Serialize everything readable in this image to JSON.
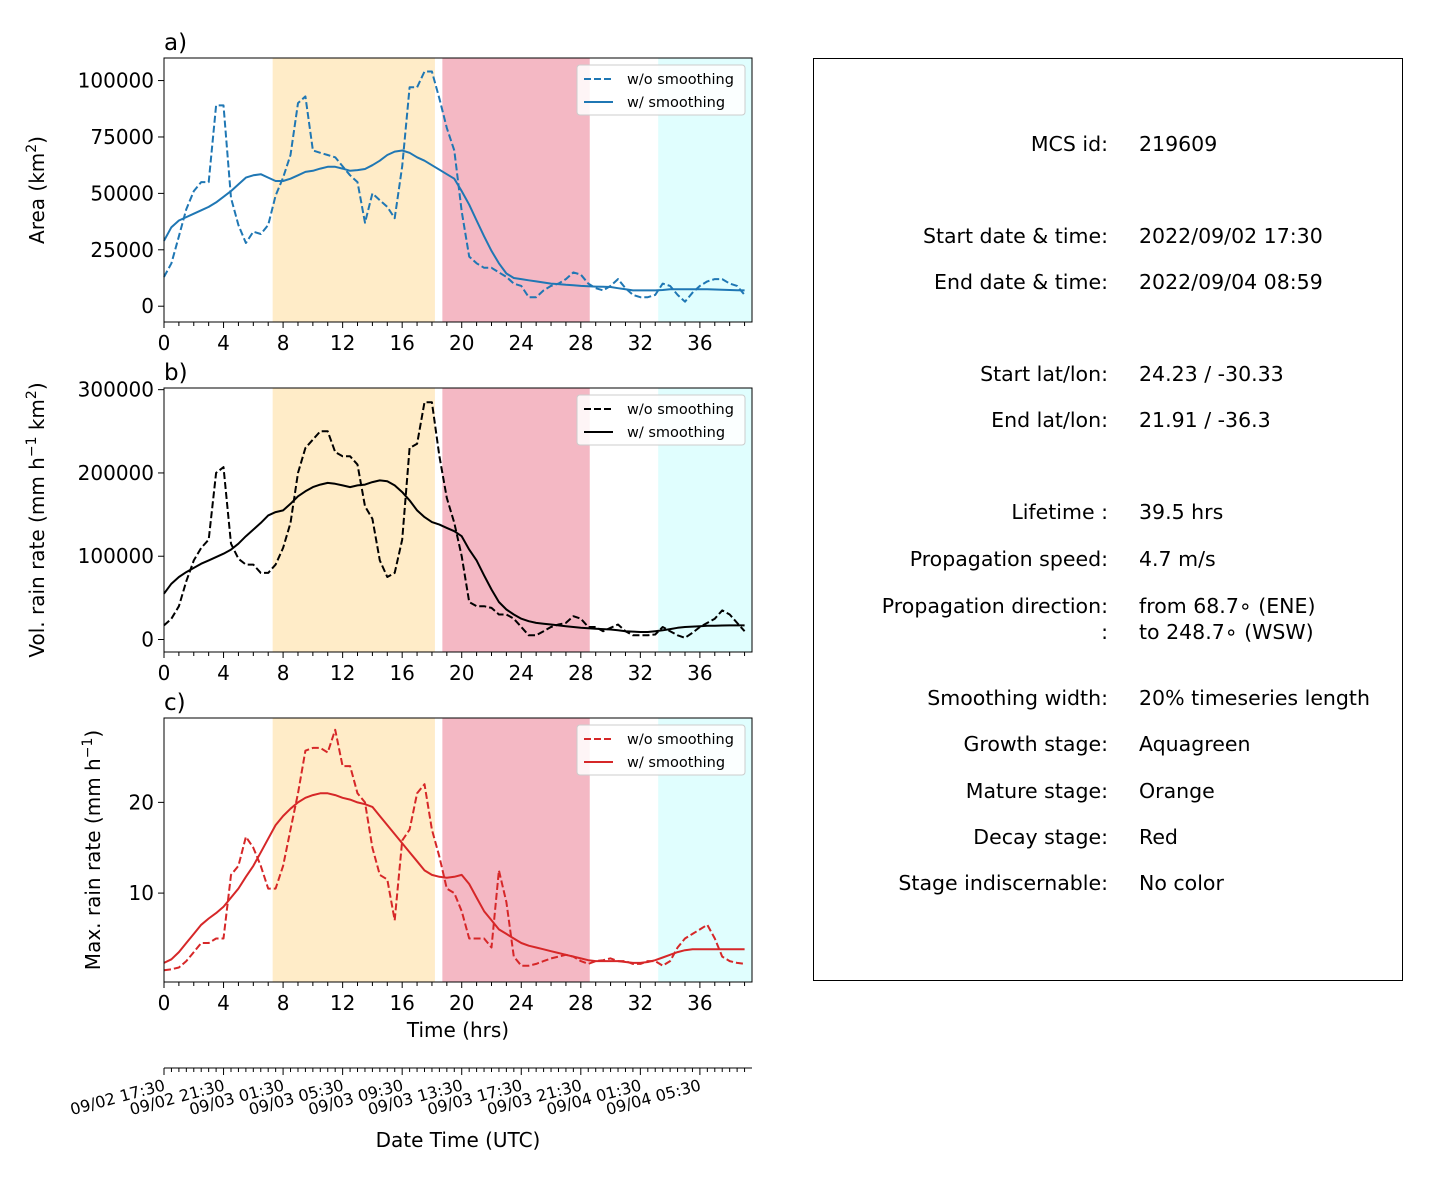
{
  "chart_data": [
    {
      "type": "line",
      "panel_label": "a)",
      "ylabel": "Area  (km²)",
      "ylabel_base": "Area  (km",
      "ylabel_sup": "2",
      "ylabel_end": ")",
      "xlim": [
        0,
        39.5
      ],
      "ylim": [
        -7000,
        110000
      ],
      "yticks": [
        0,
        25000,
        50000,
        75000,
        100000
      ],
      "xticks": [
        0,
        4,
        8,
        12,
        16,
        20,
        24,
        28,
        32,
        36
      ],
      "color": "#1f77b4",
      "legend": [
        "w/o smoothing",
        "w/ smoothing"
      ],
      "legend_position": "upper right",
      "x": [
        0,
        0.5,
        1,
        1.5,
        2,
        2.5,
        3,
        3.5,
        4,
        4.5,
        5,
        5.5,
        6,
        6.5,
        7,
        7.5,
        8,
        8.5,
        9,
        9.5,
        10,
        10.5,
        11,
        11.5,
        12,
        12.5,
        13,
        13.5,
        14,
        14.5,
        15,
        15.5,
        16,
        16.5,
        17,
        17.5,
        18,
        18.5,
        19,
        19.5,
        20,
        20.5,
        21,
        21.5,
        22,
        22.5,
        23,
        23.5,
        24,
        24.5,
        25,
        25.5,
        26,
        26.5,
        27,
        27.5,
        28,
        28.5,
        29,
        29.5,
        30,
        30.5,
        31,
        31.5,
        32,
        32.5,
        33,
        33.5,
        34,
        34.5,
        35,
        35.5,
        36,
        36.5,
        37,
        37.5,
        38,
        38.5,
        39
      ],
      "series": [
        {
          "name": "w/o smoothing",
          "style": "dashed",
          "values": [
            13000,
            19000,
            31000,
            43000,
            51000,
            55000,
            55000,
            89000,
            89000,
            48000,
            36000,
            28000,
            33000,
            32000,
            36000,
            49000,
            57000,
            67000,
            90000,
            93000,
            69000,
            68000,
            67000,
            66000,
            62000,
            58000,
            55000,
            37000,
            50000,
            47000,
            44000,
            39000,
            62000,
            97000,
            97000,
            104000,
            104000,
            92000,
            79000,
            69000,
            42000,
            22000,
            19000,
            17000,
            17000,
            15000,
            13000,
            10000,
            9000,
            4000,
            4000,
            7000,
            9000,
            10000,
            12000,
            15000,
            14000,
            10000,
            8000,
            7000,
            9000,
            12000,
            8000,
            5000,
            4000,
            4000,
            5000,
            10000,
            9000,
            5000,
            2000,
            6000,
            9000,
            11000,
            12000,
            12000,
            10000,
            9000,
            5000
          ]
        },
        {
          "name": "w/ smoothing",
          "style": "solid",
          "values": [
            29000,
            35000,
            38000,
            39500,
            41000,
            42500,
            44000,
            46000,
            48500,
            51000,
            54000,
            57000,
            58000,
            58500,
            57000,
            55500,
            55500,
            56500,
            58000,
            59500,
            60000,
            61000,
            61800,
            61800,
            61000,
            60000,
            60300,
            60800,
            62500,
            64500,
            67000,
            68500,
            69000,
            68000,
            66000,
            64500,
            62500,
            60500,
            58500,
            56500,
            51000,
            45000,
            38000,
            31000,
            24500,
            19000,
            14500,
            12500,
            12000,
            11500,
            11000,
            10500,
            10000,
            9800,
            9500,
            9300,
            9000,
            8800,
            8700,
            8600,
            8500,
            8000,
            7500,
            7000,
            7000,
            7000,
            7000,
            7200,
            7500,
            7500,
            7500,
            7500,
            7500,
            7500,
            7400,
            7300,
            7200,
            7100,
            7000
          ]
        }
      ]
    },
    {
      "type": "line",
      "panel_label": "b)",
      "ylabel": "Vol. rain rate (mm h⁻¹ km²)",
      "ylabel_base": "Vol. rain rate (mm h",
      "ylabel_sup": "−1",
      "ylabel_mid": " km",
      "ylabel_sup2": "2",
      "ylabel_end": ")",
      "xlim": [
        0,
        39.5
      ],
      "ylim": [
        -15000,
        302000
      ],
      "yticks": [
        0,
        100000,
        200000,
        300000
      ],
      "xticks": [
        0,
        4,
        8,
        12,
        16,
        20,
        24,
        28,
        32,
        36
      ],
      "color": "#000000",
      "legend": [
        "w/o smoothing",
        "w/ smoothing"
      ],
      "legend_position": "upper right",
      "x": [
        0,
        0.5,
        1,
        1.5,
        2,
        2.5,
        3,
        3.5,
        4,
        4.5,
        5,
        5.5,
        6,
        6.5,
        7,
        7.5,
        8,
        8.5,
        9,
        9.5,
        10,
        10.5,
        11,
        11.5,
        12,
        12.5,
        13,
        13.5,
        14,
        14.5,
        15,
        15.5,
        16,
        16.5,
        17,
        17.5,
        18,
        18.5,
        19,
        19.5,
        20,
        20.5,
        21,
        21.5,
        22,
        22.5,
        23,
        23.5,
        24,
        24.5,
        25,
        25.5,
        26,
        26.5,
        27,
        27.5,
        28,
        28.5,
        29,
        29.5,
        30,
        30.5,
        31,
        31.5,
        32,
        32.5,
        33,
        33.5,
        34,
        34.5,
        35,
        35.5,
        36,
        36.5,
        37,
        37.5,
        38,
        38.5,
        39
      ],
      "series": [
        {
          "name": "w/o smoothing",
          "style": "dashed",
          "values": [
            17000,
            25000,
            40000,
            70000,
            95000,
            110000,
            120000,
            200000,
            207000,
            115000,
            97000,
            90000,
            90000,
            80000,
            80000,
            90000,
            110000,
            140000,
            200000,
            230000,
            240000,
            250000,
            250000,
            225000,
            220000,
            220000,
            210000,
            160000,
            145000,
            95000,
            75000,
            80000,
            120000,
            230000,
            235000,
            285000,
            285000,
            220000,
            170000,
            140000,
            100000,
            45000,
            40000,
            40000,
            38000,
            30000,
            30000,
            25000,
            15000,
            5000,
            5000,
            10000,
            15000,
            18000,
            20000,
            28000,
            25000,
            15000,
            15000,
            10000,
            14000,
            18000,
            10000,
            5000,
            5000,
            5000,
            6000,
            15000,
            10000,
            5000,
            2000,
            8000,
            15000,
            20000,
            25000,
            35000,
            30000,
            20000,
            10000
          ]
        },
        {
          "name": "w/ smoothing",
          "style": "solid",
          "values": [
            55000,
            67000,
            75000,
            81000,
            86000,
            91000,
            95000,
            99000,
            103000,
            108000,
            115000,
            124000,
            132000,
            140000,
            149000,
            153000,
            155000,
            163000,
            172000,
            178000,
            183000,
            186000,
            188000,
            187000,
            185000,
            183000,
            185000,
            186000,
            189000,
            191000,
            190000,
            185000,
            177000,
            167000,
            155000,
            147000,
            141000,
            138000,
            134000,
            130000,
            124000,
            108000,
            95000,
            77000,
            60000,
            45000,
            36000,
            30000,
            25000,
            22000,
            20000,
            19000,
            18000,
            17000,
            16000,
            15000,
            14000,
            13500,
            13000,
            12500,
            12000,
            11000,
            10000,
            9500,
            9000,
            9000,
            10000,
            11000,
            12500,
            14000,
            15000,
            15500,
            16000,
            16500,
            16500,
            16800,
            17000,
            17000,
            17000
          ]
        }
      ]
    },
    {
      "type": "line",
      "panel_label": "c)",
      "ylabel": "Max. rain rate  (mm h⁻¹)",
      "ylabel_base": "Max. rain rate  (mm h",
      "ylabel_sup": "−1",
      "ylabel_end": ")",
      "xlim": [
        0,
        39.5
      ],
      "ylim": [
        0.2,
        29.3
      ],
      "yticks": [
        10,
        20
      ],
      "xticks": [
        0,
        4,
        8,
        12,
        16,
        20,
        24,
        28,
        32,
        36
      ],
      "color": "#d62728",
      "legend": [
        "w/o smoothing",
        "w/ smoothing"
      ],
      "legend_position": "upper right",
      "xlabel": "Time (hrs)",
      "x": [
        0,
        0.5,
        1,
        1.5,
        2,
        2.5,
        3,
        3.5,
        4,
        4.5,
        5,
        5.5,
        6,
        6.5,
        7,
        7.5,
        8,
        8.5,
        9,
        9.5,
        10,
        10.5,
        11,
        11.5,
        12,
        12.5,
        13,
        13.5,
        14,
        14.5,
        15,
        15.5,
        16,
        16.5,
        17,
        17.5,
        18,
        18.5,
        19,
        19.5,
        20,
        20.5,
        21,
        21.5,
        22,
        22.5,
        23,
        23.5,
        24,
        24.5,
        25,
        25.5,
        26,
        26.5,
        27,
        27.5,
        28,
        28.5,
        29,
        29.5,
        30,
        30.5,
        31,
        31.5,
        32,
        32.5,
        33,
        33.5,
        34,
        34.5,
        35,
        35.5,
        36,
        36.5,
        37,
        37.5,
        38,
        38.5,
        39
      ],
      "series": [
        {
          "name": "w/o smoothing",
          "style": "dashed",
          "values": [
            1.5,
            1.6,
            1.8,
            2.5,
            3.5,
            4.5,
            4.5,
            5.0,
            5.0,
            12.0,
            13.0,
            16.2,
            15.0,
            13.0,
            10.5,
            10.5,
            13.0,
            17.0,
            21.0,
            25.7,
            26.0,
            26.0,
            25.5,
            28.0,
            24.0,
            24.0,
            21.0,
            20.0,
            15.0,
            12.0,
            11.5,
            7.0,
            15.8,
            17.0,
            21.0,
            22.0,
            17.0,
            14.0,
            10.5,
            10.0,
            8.0,
            5.0,
            5.0,
            5.0,
            4.0,
            12.5,
            9.0,
            3.0,
            2.0,
            2.0,
            2.2,
            2.5,
            2.8,
            3.0,
            3.2,
            3.0,
            2.5,
            2.2,
            2.5,
            2.6,
            2.8,
            2.5,
            2.5,
            2.2,
            2.2,
            2.5,
            2.5,
            2.0,
            2.5,
            4.0,
            5.0,
            5.5,
            6.0,
            6.5,
            5.0,
            3.0,
            2.5,
            2.3,
            2.2
          ]
        },
        {
          "name": "w/ smoothing",
          "style": "solid",
          "values": [
            2.3,
            2.7,
            3.5,
            4.5,
            5.5,
            6.5,
            7.2,
            7.8,
            8.5,
            9.5,
            10.5,
            11.8,
            13.0,
            14.5,
            16.0,
            17.5,
            18.5,
            19.3,
            20.0,
            20.5,
            20.8,
            21.0,
            21.0,
            20.8,
            20.5,
            20.3,
            20.0,
            19.8,
            19.5,
            18.5,
            17.5,
            16.5,
            15.5,
            14.5,
            13.5,
            12.5,
            12.0,
            11.8,
            11.7,
            11.8,
            12.0,
            11.0,
            9.5,
            8.0,
            7.0,
            6.0,
            5.5,
            5.0,
            4.5,
            4.2,
            4.0,
            3.8,
            3.6,
            3.4,
            3.2,
            3.0,
            2.8,
            2.6,
            2.5,
            2.5,
            2.5,
            2.5,
            2.4,
            2.3,
            2.3,
            2.4,
            2.6,
            2.9,
            3.2,
            3.5,
            3.7,
            3.8,
            3.8,
            3.8,
            3.8,
            3.8,
            3.8,
            3.8,
            3.8
          ]
        }
      ]
    }
  ],
  "stages": [
    {
      "name": "Mature",
      "color": "#ffecc8",
      "start": 7.3,
      "end": 18.2
    },
    {
      "name": "Decay",
      "color": "#f4b8c4",
      "start": 18.7,
      "end": 28.6
    },
    {
      "name": "Growth",
      "color": "#e0fefe",
      "start": 33.2,
      "end": 39.5
    }
  ],
  "date_axis": {
    "xlabel": "Date Time (UTC)",
    "tick_labels": [
      "09/02 17:30",
      "09/02 21:30",
      "09/03 01:30",
      "09/03 05:30",
      "09/03 09:30",
      "09/03 13:30",
      "09/03 17:30",
      "09/03 21:30",
      "09/04 01:30",
      "09/04 05:30"
    ]
  },
  "info": {
    "rows": [
      {
        "label": "MCS id:",
        "value": "219609"
      },
      {
        "label": "Start date & time:",
        "value": "2022/09/02 17:30"
      },
      {
        "label": "End date & time:",
        "value": "2022/09/04 08:59"
      },
      {
        "label": "Start lat/lon:",
        "value": "24.23 / -30.33"
      },
      {
        "label": "End lat/lon:",
        "value": "21.91 / -36.3"
      },
      {
        "label": "Lifetime :",
        "value": "39.5 hrs"
      },
      {
        "label": "Propagation speed:",
        "value": "4.7 m/s"
      },
      {
        "label": "Propagation direction:",
        "value": "from  68.7∘ (ENE)"
      },
      {
        "label": ":",
        "value": "to   248.7∘ (WSW)"
      },
      {
        "label": "Smoothing width:",
        "value": "20% timeseries length"
      },
      {
        "label": "Growth stage:",
        "value": "Aquagreen"
      },
      {
        "label": "Mature stage:",
        "value": "Orange"
      },
      {
        "label": "Decay stage:",
        "value": "Red"
      },
      {
        "label": "Stage indiscernable:",
        "value": "No color"
      }
    ]
  }
}
